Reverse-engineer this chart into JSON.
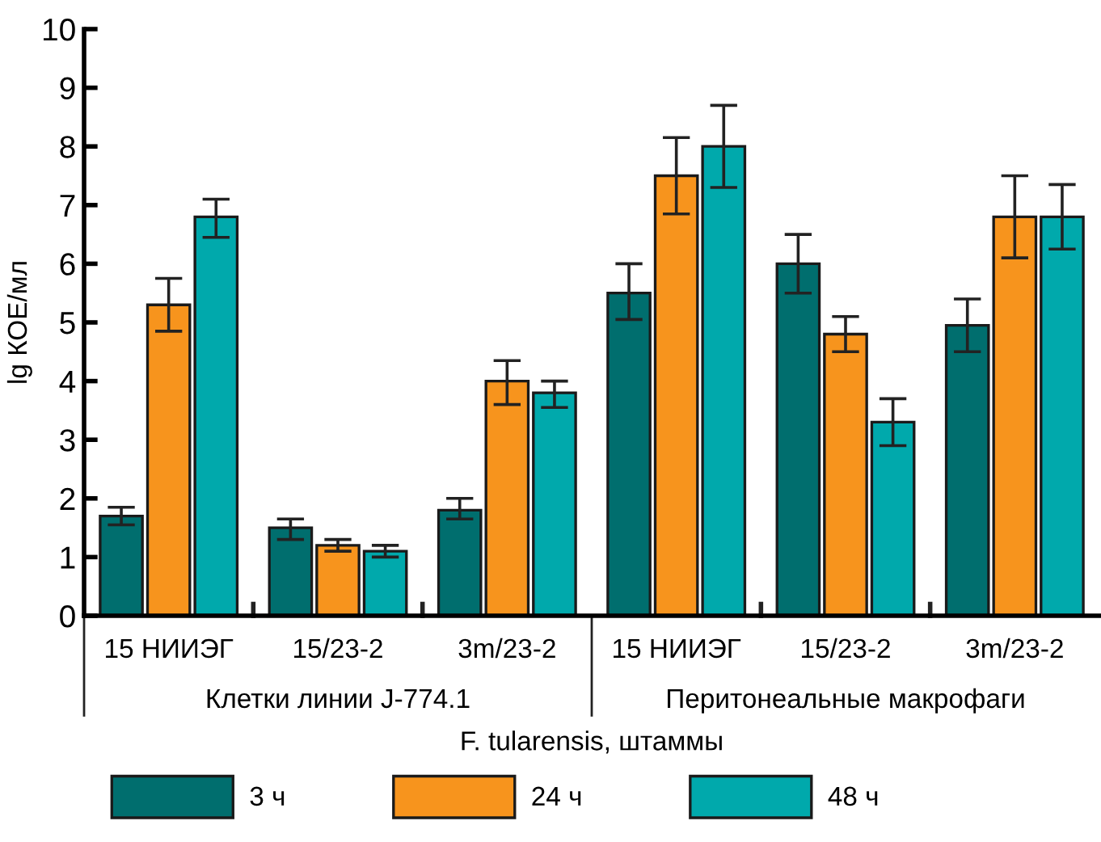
{
  "chart_data": {
    "type": "bar",
    "ylabel": "lg КОЕ/мл",
    "xlabel": "F. tularensis, штаммы",
    "categories": [
      "15 НИИЭГ",
      "15/23-2",
      "3m/23-2",
      "15 НИИЭГ",
      "15/23-2",
      "3m/23-2"
    ],
    "annotations": [
      "Клетки линии J-774.1",
      "Перитонеальные макрофаги"
    ],
    "series": [
      {
        "name": "3 ч",
        "color": "#006e6e",
        "values": [
          1.7,
          1.5,
          1.8,
          5.5,
          6.0,
          4.95
        ],
        "errors": [
          [
            1.55,
            1.85
          ],
          [
            1.3,
            1.65
          ],
          [
            1.65,
            2.0
          ],
          [
            5.05,
            6.0
          ],
          [
            5.5,
            6.5
          ],
          [
            4.5,
            5.4
          ]
        ]
      },
      {
        "name": "24 ч",
        "color": "#f7941d",
        "values": [
          5.3,
          1.2,
          4.0,
          7.5,
          4.8,
          6.8
        ],
        "errors": [
          [
            4.85,
            5.75
          ],
          [
            1.1,
            1.3
          ],
          [
            3.6,
            4.35
          ],
          [
            6.85,
            8.15
          ],
          [
            4.5,
            5.1
          ],
          [
            6.1,
            7.5
          ]
        ]
      },
      {
        "name": "48 ч",
        "color": "#00a9ac",
        "values": [
          6.8,
          1.1,
          3.8,
          8.0,
          3.3,
          6.8
        ],
        "errors": [
          [
            6.45,
            7.1
          ],
          [
            1.0,
            1.2
          ],
          [
            3.55,
            4.0
          ],
          [
            7.3,
            8.7
          ],
          [
            2.9,
            3.7
          ],
          [
            6.25,
            7.35
          ]
        ]
      }
    ],
    "ylim": [
      0,
      10
    ],
    "yticks": [
      0,
      1,
      2,
      3,
      4,
      5,
      6,
      7,
      8,
      9,
      10
    ],
    "grid": false,
    "legend": "bottom"
  }
}
